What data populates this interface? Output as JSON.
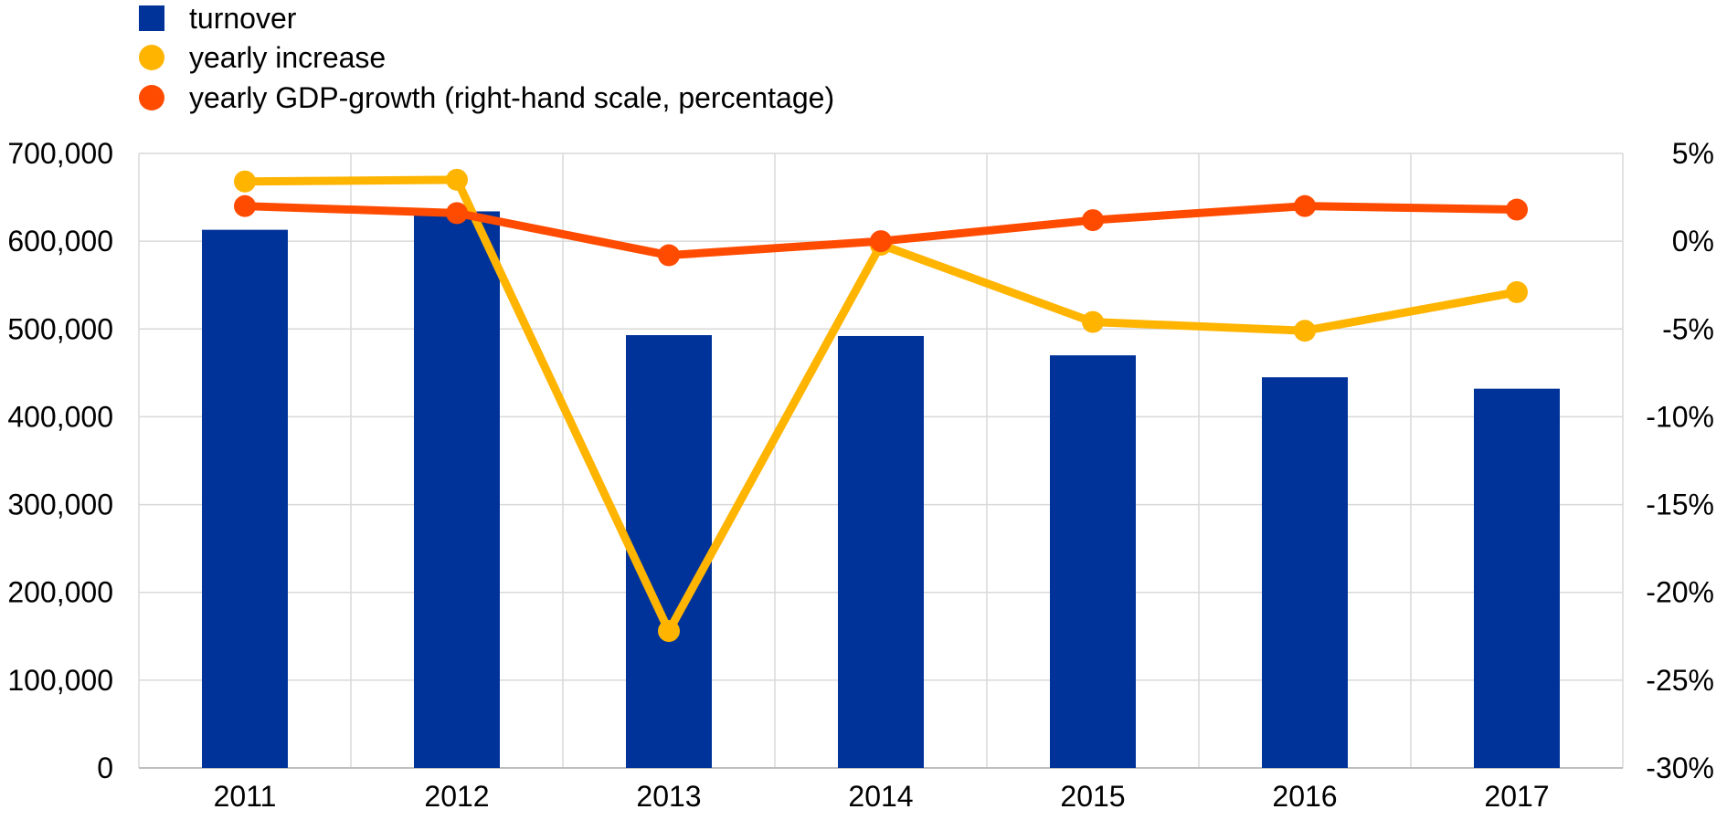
{
  "chart_data": {
    "type": "bar",
    "categories": [
      "2011",
      "2012",
      "2013",
      "2014",
      "2015",
      "2016",
      "2017"
    ],
    "series": [
      {
        "name": "turnover",
        "type": "bar",
        "axis": "left",
        "color": "#003399",
        "values": [
          613000,
          634000,
          493000,
          492000,
          470000,
          445000,
          432000
        ]
      },
      {
        "name": "yearly increase",
        "type": "line",
        "axis": "right",
        "color": "#FFB400",
        "values": [
          3.4,
          3.5,
          -22.2,
          -0.2,
          -4.6,
          -5.1,
          -2.9
        ]
      },
      {
        "name": "yearly GDP-growth (right-hand scale, percentage)",
        "type": "line",
        "axis": "right",
        "color": "#FF4B00",
        "values": [
          2.0,
          1.6,
          -0.8,
          0.0,
          1.2,
          2.0,
          1.8
        ]
      }
    ],
    "y_left": {
      "min": 0,
      "max": 700000,
      "step": 100000,
      "tick_labels": [
        "0",
        "100,000",
        "200,000",
        "300,000",
        "400,000",
        "500,000",
        "600,000",
        "700,000"
      ]
    },
    "y_right": {
      "min": -30,
      "max": 5,
      "step": 5,
      "tick_labels": [
        "-30%",
        "-25%",
        "-20%",
        "-15%",
        "-10%",
        "-5%",
        "0%",
        "5%"
      ]
    },
    "grid": true,
    "legend_position": "top-left",
    "title": "",
    "xlabel": "",
    "ylabel": ""
  }
}
